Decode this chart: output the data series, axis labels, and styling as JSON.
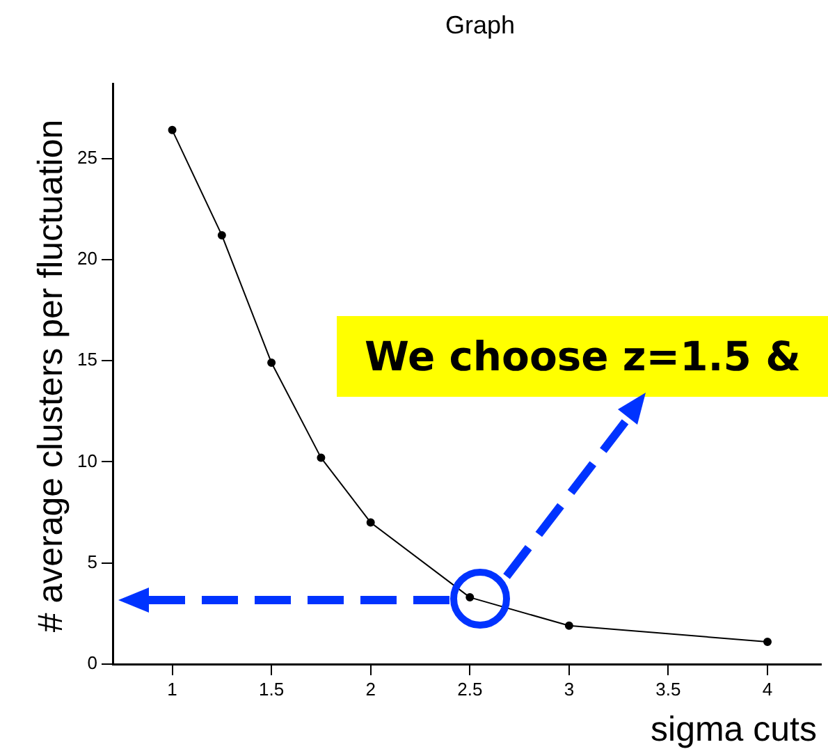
{
  "chart_data": {
    "type": "line",
    "title": "Graph",
    "xlabel": "sigma cuts",
    "ylabel": "# average clusters per fluctuation",
    "x": [
      1,
      1.25,
      1.5,
      1.75,
      2,
      2.5,
      3,
      4
    ],
    "series": [
      {
        "color": "#000000",
        "values": [
          26.4,
          21.2,
          14.9,
          10.2,
          7.0,
          3.3,
          1.9,
          1.1
        ]
      }
    ],
    "xlim": [
      0.7,
      4.27
    ],
    "xticks": [
      1,
      1.5,
      2,
      2.5,
      3,
      3.5,
      4
    ],
    "ylim": [
      0,
      28.7
    ],
    "yticks": [
      0,
      5,
      10,
      15,
      20,
      25
    ],
    "grid": false,
    "legend": false,
    "marker": "circle",
    "line_style": "solid",
    "annotations": [
      "We choose z=1.5 &"
    ]
  }
}
